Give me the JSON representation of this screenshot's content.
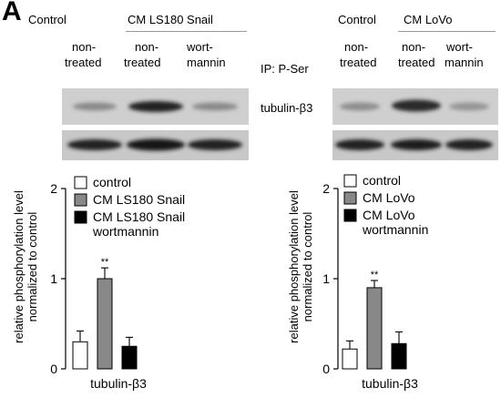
{
  "panel_label": "A",
  "left": {
    "group_labels": [
      "Control",
      "CM LS180 Snail"
    ],
    "lane_labels": [
      [
        "non-",
        "treated"
      ],
      [
        "non-",
        "treated"
      ],
      [
        "wort-",
        "mannin"
      ]
    ]
  },
  "right": {
    "group_labels": [
      "Control",
      "CM LoVo"
    ],
    "lane_labels": [
      [
        "non-",
        "treated"
      ],
      [
        "non-",
        "treated"
      ],
      [
        "wort-",
        "mannin"
      ]
    ],
    "ip_label": "IP: P-Ser",
    "protein_label": "tubulin-β3"
  },
  "chart_data": [
    {
      "type": "bar",
      "categories": [
        "control",
        "CM LS180 Snail",
        "CM LS180 Snail wortmannin"
      ],
      "legend": [
        "control",
        "CM LS180 Snail",
        "CM LS180 Snail wortmannin"
      ],
      "legend_lines": [
        [
          "control"
        ],
        [
          "CM LS180 Snail"
        ],
        [
          "CM LS180 Snail",
          "wortmannin"
        ]
      ],
      "values": [
        0.3,
        1.0,
        0.25
      ],
      "errors": [
        0.12,
        0.12,
        0.1
      ],
      "significance": [
        "",
        "**",
        ""
      ],
      "colors": [
        "#ffffff",
        "#888888",
        "#000000"
      ],
      "ylim": [
        0,
        2
      ],
      "yticks": [
        0,
        1,
        2
      ],
      "ylabel_lines": [
        "relative phosphorylation level",
        "normalized to control"
      ],
      "xlabel": "tubulin-β3"
    },
    {
      "type": "bar",
      "categories": [
        "control",
        "CM LoVo",
        "CM LoVo wortmannin"
      ],
      "legend": [
        "control",
        "CM LoVo",
        "CM LoVo wortmannin"
      ],
      "legend_lines": [
        [
          "control"
        ],
        [
          "CM LoVo"
        ],
        [
          "CM LoVo",
          "wortmannin"
        ]
      ],
      "values": [
        0.22,
        0.9,
        0.28
      ],
      "errors": [
        0.09,
        0.08,
        0.13
      ],
      "significance": [
        "",
        "**",
        ""
      ],
      "colors": [
        "#ffffff",
        "#888888",
        "#000000"
      ],
      "ylim": [
        0,
        2
      ],
      "yticks": [
        0,
        1,
        2
      ],
      "ylabel_lines": [
        "relative phosphorylation level",
        "normalized to control"
      ],
      "xlabel": "tubulin-β3"
    }
  ]
}
